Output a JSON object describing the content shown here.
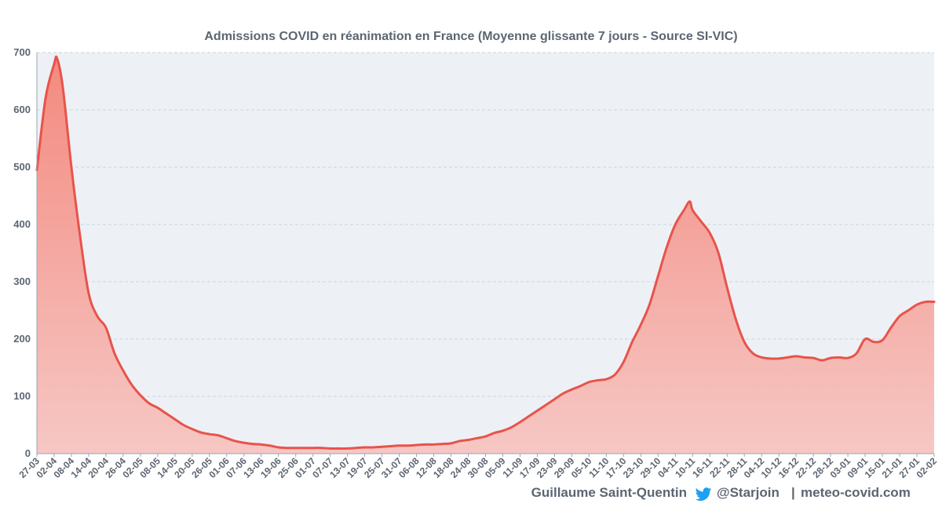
{
  "chart_data": {
    "type": "area",
    "title": "Admissions COVID en réanimation en France (Moyenne glissante 7 jours - Source SI-VIC)",
    "xlabel": "",
    "ylabel": "",
    "ylim": [
      0,
      700
    ],
    "yticks": [
      0,
      100,
      200,
      300,
      400,
      500,
      600,
      700
    ],
    "grid": true,
    "legend": "none",
    "x_tick_labels": [
      "27-03",
      "02-04",
      "08-04",
      "14-04",
      "20-04",
      "26-04",
      "02-05",
      "08-05",
      "14-05",
      "20-05",
      "26-05",
      "01-06",
      "07-06",
      "13-06",
      "19-06",
      "25-06",
      "01-07",
      "07-07",
      "13-07",
      "19-07",
      "25-07",
      "31-07",
      "06-08",
      "12-08",
      "18-08",
      "24-08",
      "30-08",
      "05-09",
      "11-09",
      "17-09",
      "23-09",
      "29-09",
      "05-10",
      "11-10",
      "17-10",
      "23-10",
      "29-10",
      "04-11",
      "10-11",
      "16-11",
      "22-11",
      "28-11",
      "04-12",
      "10-12",
      "16-12",
      "22-12",
      "28-12",
      "03-01",
      "09-01",
      "15-01",
      "21-01",
      "27-01",
      "02-02"
    ],
    "series": [
      {
        "line_color": "#e8534a",
        "fill_top_color": "#f38a7f",
        "fill_bottom_color": "#f6c7c4",
        "points": [
          [
            "27-03",
            495
          ],
          [
            "30-03",
            620
          ],
          [
            "02-04",
            680
          ],
          [
            "03-04",
            690
          ],
          [
            "05-04",
            640
          ],
          [
            "08-04",
            500
          ],
          [
            "11-04",
            380
          ],
          [
            "14-04",
            280
          ],
          [
            "17-04",
            240
          ],
          [
            "20-04",
            220
          ],
          [
            "23-04",
            175
          ],
          [
            "26-04",
            145
          ],
          [
            "29-04",
            120
          ],
          [
            "02-05",
            102
          ],
          [
            "05-05",
            88
          ],
          [
            "08-05",
            80
          ],
          [
            "11-05",
            70
          ],
          [
            "14-05",
            60
          ],
          [
            "17-05",
            50
          ],
          [
            "20-05",
            43
          ],
          [
            "23-05",
            37
          ],
          [
            "26-05",
            34
          ],
          [
            "29-05",
            32
          ],
          [
            "01-06",
            27
          ],
          [
            "04-06",
            22
          ],
          [
            "07-06",
            19
          ],
          [
            "10-06",
            17
          ],
          [
            "13-06",
            16
          ],
          [
            "16-06",
            14
          ],
          [
            "19-06",
            11
          ],
          [
            "22-06",
            10
          ],
          [
            "25-06",
            10
          ],
          [
            "28-06",
            10
          ],
          [
            "01-07",
            10
          ],
          [
            "04-07",
            10
          ],
          [
            "07-07",
            9
          ],
          [
            "10-07",
            9
          ],
          [
            "13-07",
            9
          ],
          [
            "16-07",
            10
          ],
          [
            "19-07",
            11
          ],
          [
            "22-07",
            11
          ],
          [
            "25-07",
            12
          ],
          [
            "28-07",
            13
          ],
          [
            "31-07",
            14
          ],
          [
            "03-08",
            14
          ],
          [
            "06-08",
            15
          ],
          [
            "09-08",
            16
          ],
          [
            "12-08",
            16
          ],
          [
            "15-08",
            17
          ],
          [
            "18-08",
            18
          ],
          [
            "21-08",
            22
          ],
          [
            "24-08",
            24
          ],
          [
            "27-08",
            27
          ],
          [
            "30-08",
            30
          ],
          [
            "02-09",
            36
          ],
          [
            "05-09",
            40
          ],
          [
            "08-09",
            46
          ],
          [
            "11-09",
            55
          ],
          [
            "14-09",
            65
          ],
          [
            "17-09",
            75
          ],
          [
            "20-09",
            85
          ],
          [
            "23-09",
            95
          ],
          [
            "26-09",
            105
          ],
          [
            "29-09",
            112
          ],
          [
            "02-10",
            118
          ],
          [
            "05-10",
            125
          ],
          [
            "08-10",
            128
          ],
          [
            "11-10",
            130
          ],
          [
            "14-10",
            138
          ],
          [
            "17-10",
            160
          ],
          [
            "20-10",
            195
          ],
          [
            "23-10",
            225
          ],
          [
            "26-10",
            260
          ],
          [
            "29-10",
            310
          ],
          [
            "01-11",
            360
          ],
          [
            "04-11",
            400
          ],
          [
            "07-11",
            425
          ],
          [
            "09-11",
            440
          ],
          [
            "10-11",
            425
          ],
          [
            "13-11",
            405
          ],
          [
            "16-11",
            385
          ],
          [
            "19-11",
            350
          ],
          [
            "22-11",
            290
          ],
          [
            "25-11",
            235
          ],
          [
            "28-11",
            195
          ],
          [
            "01-12",
            175
          ],
          [
            "04-12",
            168
          ],
          [
            "07-12",
            166
          ],
          [
            "10-12",
            166
          ],
          [
            "13-12",
            168
          ],
          [
            "16-12",
            170
          ],
          [
            "19-12",
            168
          ],
          [
            "22-12",
            167
          ],
          [
            "25-12",
            163
          ],
          [
            "28-12",
            167
          ],
          [
            "31-12",
            168
          ],
          [
            "03-01",
            167
          ],
          [
            "06-01",
            175
          ],
          [
            "09-01",
            200
          ],
          [
            "12-01",
            195
          ],
          [
            "15-01",
            198
          ],
          [
            "18-01",
            220
          ],
          [
            "21-01",
            240
          ],
          [
            "24-01",
            250
          ],
          [
            "27-01",
            260
          ],
          [
            "30-01",
            265
          ],
          [
            "02-02",
            265
          ]
        ]
      }
    ]
  },
  "footer": {
    "author": "Guillaume Saint-Quentin",
    "twitter_handle": "@Starjoin",
    "separator": "|",
    "site": "meteo-covid.com",
    "twitter_icon": "twitter-bird-icon",
    "twitter_color": "#1da1f2"
  }
}
